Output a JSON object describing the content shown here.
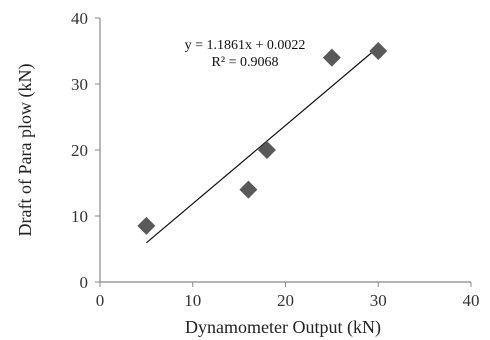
{
  "chart_data": {
    "type": "scatter",
    "title": "",
    "xlabel": "Dynamometer Output (kN)",
    "ylabel": "Draft of Para plow (kN)",
    "xlim": [
      0,
      40
    ],
    "ylim": [
      0,
      40
    ],
    "x_ticks": [
      "0",
      "10",
      "20",
      "30",
      "40"
    ],
    "y_ticks": [
      "0",
      "10",
      "20",
      "30",
      "40"
    ],
    "grid": false,
    "marker_color": "#595959",
    "line_color": "#111111",
    "series": [
      {
        "x": [
          5,
          16,
          18,
          25,
          30
        ],
        "y": [
          8.5,
          14,
          20,
          34,
          35
        ]
      }
    ],
    "trendline": {
      "slope": 1.1861,
      "intercept": 0.0022,
      "x_range": [
        5,
        30
      ],
      "equation": "y = 1.1861x + 0.0022",
      "r_squared": "R² = 0.9068"
    }
  }
}
